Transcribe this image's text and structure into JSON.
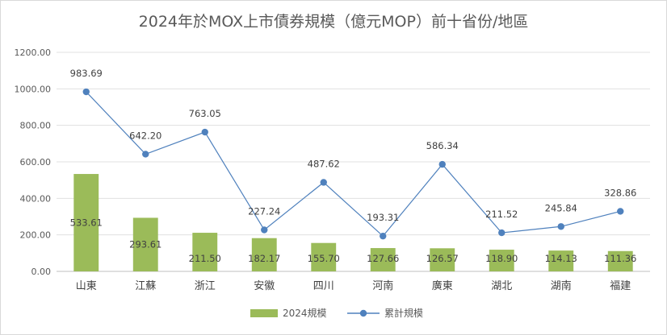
{
  "chart_data": {
    "type": "bar",
    "title": "2024年於MOX上市債券規模（億元MOP）前十省份/地區",
    "categories": [
      "山東",
      "江蘇",
      "浙江",
      "安徽",
      "四川",
      "河南",
      "廣東",
      "湖北",
      "湖南",
      "福建"
    ],
    "series": [
      {
        "name": "2024規模",
        "type": "bar",
        "color": "#9bbb59",
        "values": [
          533.61,
          293.61,
          211.5,
          182.17,
          155.7,
          127.66,
          126.57,
          118.9,
          114.13,
          111.36
        ],
        "labels": [
          "533.61",
          "293.61",
          "211.50",
          "182.17",
          "155.70",
          "127.66",
          "126.57",
          "118.90",
          "114.13",
          "111.36"
        ]
      },
      {
        "name": "累計規模",
        "type": "line",
        "color": "#4f81bd",
        "values": [
          983.69,
          642.2,
          763.05,
          227.24,
          487.62,
          193.31,
          586.34,
          211.52,
          245.84,
          328.86
        ],
        "labels": [
          "983.69",
          "642.20",
          "763.05",
          "227.24",
          "487.62",
          "193.31",
          "586.34",
          "211.52",
          "245.84",
          "328.86"
        ]
      }
    ],
    "yticks": [
      "0.00",
      "200.00",
      "400.00",
      "600.00",
      "800.00",
      "1000.00",
      "1200.00"
    ],
    "ylim": [
      0,
      1200
    ],
    "xlabel": "",
    "ylabel": "",
    "grid": true,
    "legend": "bottom"
  }
}
